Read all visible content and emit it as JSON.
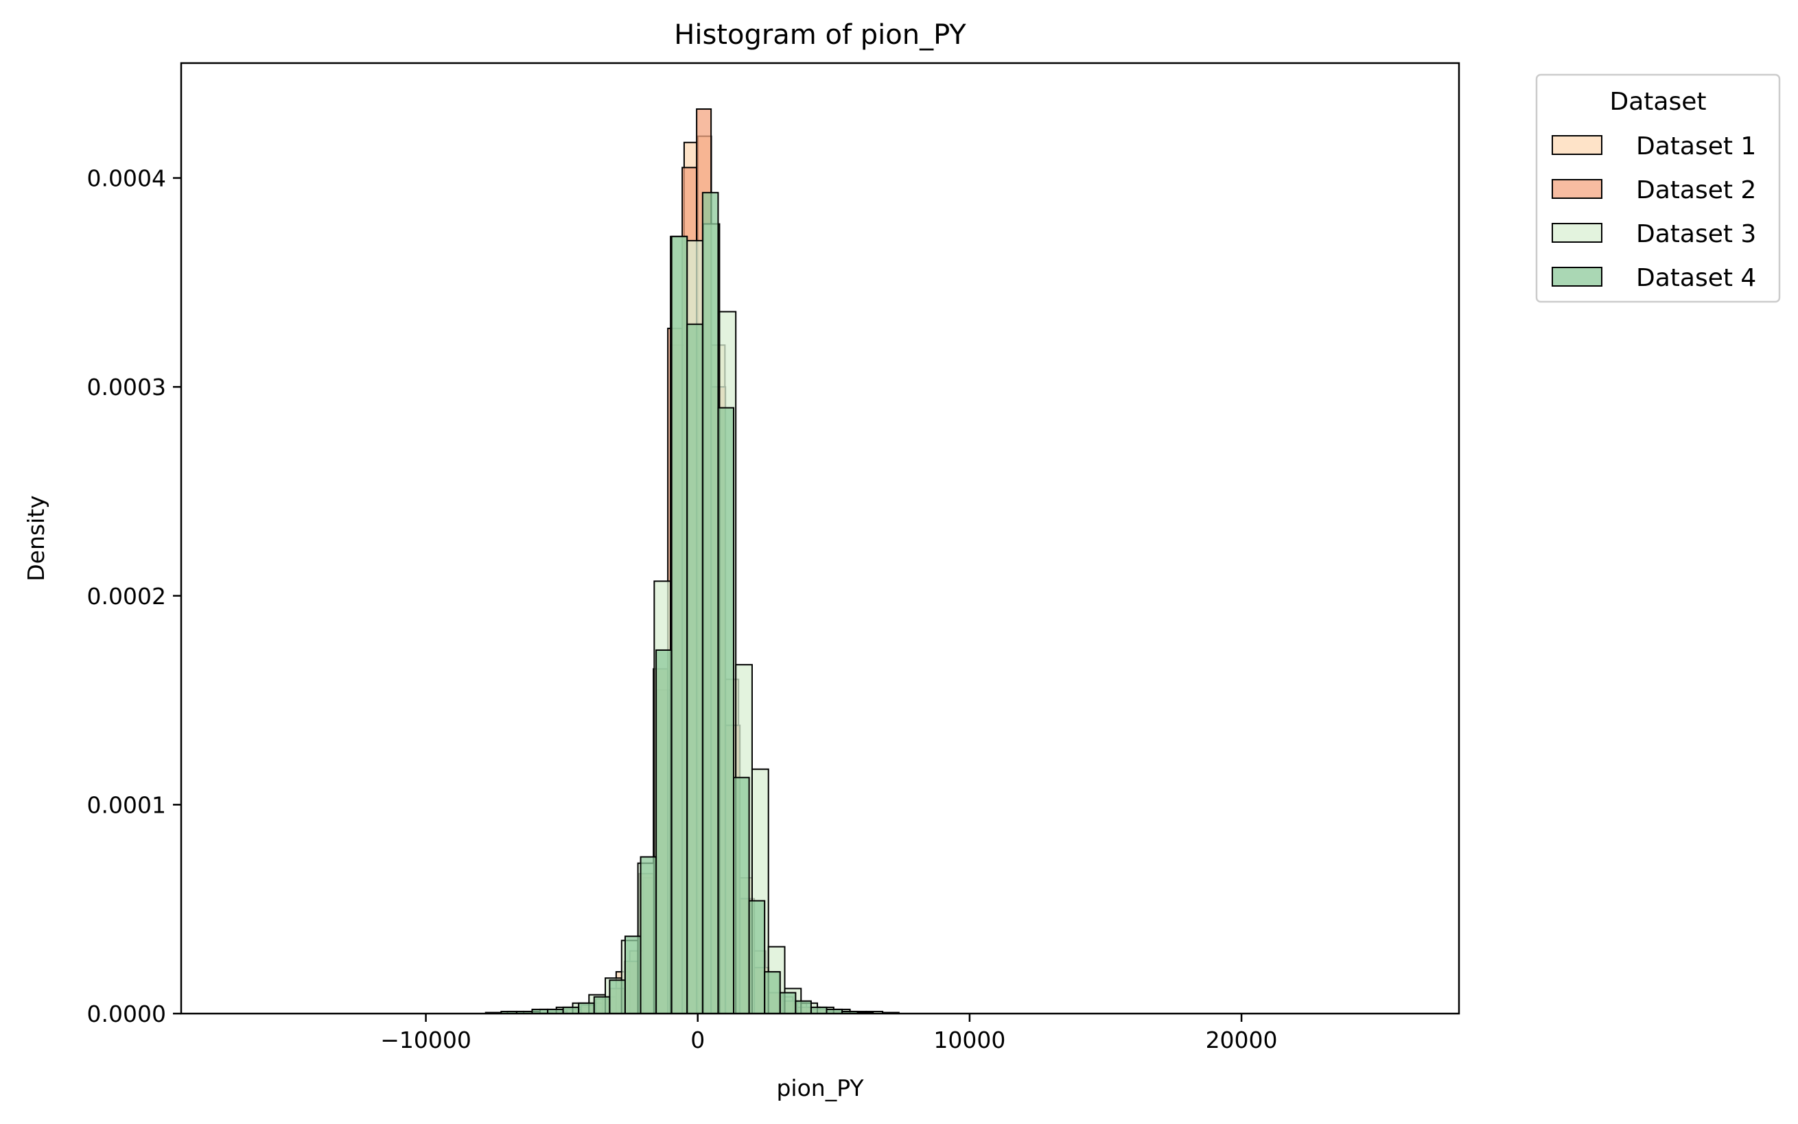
{
  "chart_data": {
    "type": "bar",
    "title": "Histogram of pion_PY",
    "xlabel": "pion_PY",
    "ylabel": "Density",
    "xlim": [
      -19000,
      28000
    ],
    "ylim": [
      0,
      0.000455
    ],
    "x_ticks": [
      {
        "value": -10000,
        "label": "−10000"
      },
      {
        "value": 0,
        "label": "0"
      },
      {
        "value": 10000,
        "label": "10000"
      },
      {
        "value": 20000,
        "label": "20000"
      }
    ],
    "y_ticks": [
      {
        "value": 0.0,
        "label": "0.0000"
      },
      {
        "value": 0.0001,
        "label": "0.0001"
      },
      {
        "value": 0.0002,
        "label": "0.0002"
      },
      {
        "value": 0.0003,
        "label": "0.0003"
      },
      {
        "value": 0.0004,
        "label": "0.0004"
      }
    ],
    "grid": false,
    "legend": {
      "title": "Dataset",
      "position": "outside-top-right"
    },
    "series": [
      {
        "name": "Dataset 1",
        "color": "#fdd9b5",
        "bins": [
          [
            -6000,
            -5500,
            5e-07
          ],
          [
            -5500,
            -5000,
            1e-06
          ],
          [
            -5000,
            -4500,
            2e-06
          ],
          [
            -4500,
            -4000,
            3e-06
          ],
          [
            -4000,
            -3500,
            5e-06
          ],
          [
            -3500,
            -3000,
            8e-06
          ],
          [
            -3000,
            -2500,
            2e-05
          ],
          [
            -2500,
            -2000,
            3e-05
          ],
          [
            -2000,
            -1500,
            6.5e-05
          ],
          [
            -1500,
            -1000,
            0.000155
          ],
          [
            -1000,
            -500,
            0.00032
          ],
          [
            -500,
            0,
            0.000417
          ],
          [
            0,
            500,
            0.00042
          ],
          [
            500,
            1000,
            0.00032
          ],
          [
            1000,
            1500,
            0.00016
          ],
          [
            1500,
            2000,
            6.5e-05
          ],
          [
            2000,
            2500,
            3e-05
          ],
          [
            2500,
            3000,
            2e-05
          ],
          [
            3000,
            3500,
            8e-06
          ],
          [
            3500,
            4000,
            5e-06
          ],
          [
            4000,
            4500,
            3e-06
          ],
          [
            4500,
            5000,
            2e-06
          ],
          [
            5000,
            5500,
            1e-06
          ],
          [
            5500,
            6000,
            5e-07
          ]
        ]
      },
      {
        "name": "Dataset 2",
        "color": "#f4a582",
        "bins": [
          [
            -5870,
            -5340,
            5e-07
          ],
          [
            -5340,
            -4810,
            1e-06
          ],
          [
            -4810,
            -4280,
            2e-06
          ],
          [
            -4280,
            -3750,
            4e-06
          ],
          [
            -3750,
            -3220,
            7e-06
          ],
          [
            -3220,
            -2690,
            1.2e-05
          ],
          [
            -2690,
            -2160,
            2.5e-05
          ],
          [
            -2160,
            -1630,
            6.7e-05
          ],
          [
            -1630,
            -1100,
            0.000165
          ],
          [
            -1100,
            -570,
            0.000328
          ],
          [
            -570,
            -40,
            0.000405
          ],
          [
            -40,
            490,
            0.000433
          ],
          [
            490,
            1020,
            0.0003
          ],
          [
            1020,
            1550,
            0.000138
          ],
          [
            1550,
            2080,
            5.5e-05
          ],
          [
            2080,
            2610,
            2.2e-05
          ],
          [
            2610,
            3140,
            1e-05
          ],
          [
            3140,
            3670,
            6e-06
          ],
          [
            3670,
            4200,
            3e-06
          ],
          [
            4200,
            4730,
            2e-06
          ],
          [
            4730,
            5260,
            1e-06
          ],
          [
            5260,
            5790,
            5e-07
          ]
        ]
      },
      {
        "name": "Dataset 3",
        "color": "#d9efd3",
        "bins": [
          [
            -7000,
            -6400,
            1e-06
          ],
          [
            -6400,
            -5800,
            1e-06
          ],
          [
            -5800,
            -5200,
            2e-06
          ],
          [
            -5200,
            -4600,
            3e-06
          ],
          [
            -4600,
            -4000,
            5e-06
          ],
          [
            -4000,
            -3400,
            9e-06
          ],
          [
            -3400,
            -2800,
            1.7e-05
          ],
          [
            -2800,
            -2200,
            3.5e-05
          ],
          [
            -2200,
            -1600,
            7.2e-05
          ],
          [
            -1600,
            -1000,
            0.000207
          ],
          [
            -1000,
            -400,
            0.000372
          ],
          [
            -400,
            200,
            0.00037
          ],
          [
            200,
            800,
            0.000378
          ],
          [
            800,
            1400,
            0.000336
          ],
          [
            1400,
            2000,
            0.000167
          ],
          [
            2000,
            2600,
            0.000117
          ],
          [
            2600,
            3200,
            3.2e-05
          ],
          [
            3200,
            3800,
            1.2e-05
          ],
          [
            3800,
            4400,
            5e-06
          ],
          [
            4400,
            5000,
            3e-06
          ],
          [
            5000,
            5600,
            2e-06
          ],
          [
            5600,
            6200,
            1e-06
          ],
          [
            6200,
            6800,
            1e-06
          ],
          [
            6800,
            7400,
            5e-07
          ]
        ]
      },
      {
        "name": "Dataset 4",
        "color": "#8dc99b",
        "bins": [
          [
            -7800,
            -7230,
            5e-07
          ],
          [
            -7230,
            -6660,
            1e-06
          ],
          [
            -6660,
            -6090,
            1e-06
          ],
          [
            -6090,
            -5520,
            2e-06
          ],
          [
            -5520,
            -4950,
            2e-06
          ],
          [
            -4950,
            -4380,
            3e-06
          ],
          [
            -4380,
            -3810,
            5e-06
          ],
          [
            -3810,
            -3240,
            8e-06
          ],
          [
            -3240,
            -2670,
            1.6e-05
          ],
          [
            -2670,
            -2100,
            3.7e-05
          ],
          [
            -2100,
            -1530,
            7.5e-05
          ],
          [
            -1530,
            -960,
            0.000174
          ],
          [
            -960,
            -390,
            0.000372
          ],
          [
            -390,
            180,
            0.00033
          ],
          [
            180,
            750,
            0.000393
          ],
          [
            750,
            1320,
            0.00029
          ],
          [
            1320,
            1890,
            0.000113
          ],
          [
            1890,
            2460,
            5.4e-05
          ],
          [
            2460,
            3030,
            2e-05
          ],
          [
            3030,
            3600,
            1e-05
          ],
          [
            3600,
            4170,
            6e-06
          ],
          [
            4170,
            4740,
            3e-06
          ],
          [
            4740,
            5310,
            2e-06
          ],
          [
            5310,
            5880,
            1e-06
          ],
          [
            5880,
            6450,
            5e-07
          ]
        ]
      }
    ]
  }
}
